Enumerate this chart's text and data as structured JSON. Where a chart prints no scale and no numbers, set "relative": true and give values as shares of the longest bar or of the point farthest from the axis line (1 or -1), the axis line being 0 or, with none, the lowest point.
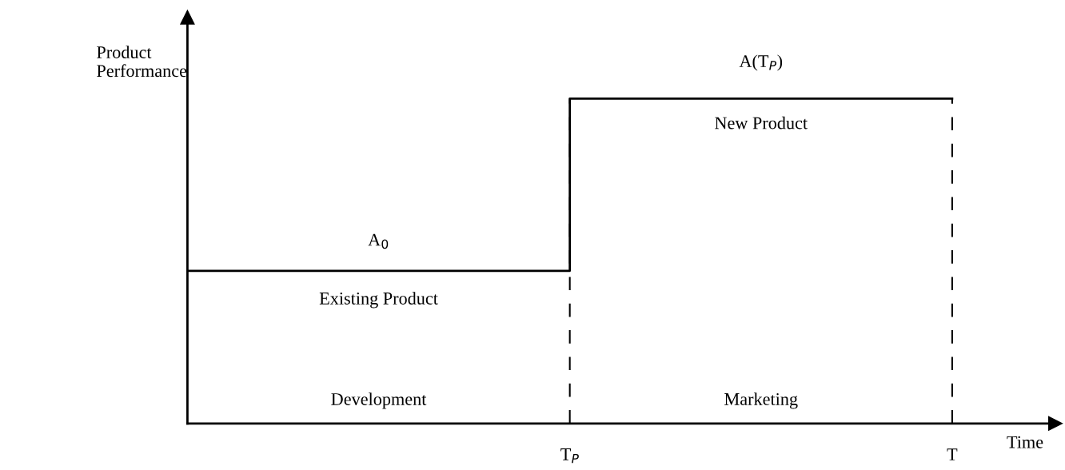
{
  "chart_data": {
    "type": "step",
    "xlabel": "Time",
    "ylabel": "Product\nPerformance",
    "categories": [
      null,
      "T$_{P}$",
      "T"
    ],
    "relative": true,
    "series": [
      {
        "color": "#000000",
        "values": [
          0.47,
          1,
          1
        ]
      }
    ],
    "ref_lines": [
      {
        "axis": "x",
        "value": "T$_{P}$",
        "line_style": "dashed",
        "color": "#000000"
      },
      {
        "axis": "x",
        "value": "T",
        "line_style": "dashed",
        "color": "#000000"
      }
    ],
    "annotations": [
      "A$_{0}$",
      "Existing Product",
      "A(T$_{P}$)",
      "New Product",
      "Development",
      "Marketing"
    ],
    "line_style": "solid",
    "grid": false,
    "legend": false
  }
}
